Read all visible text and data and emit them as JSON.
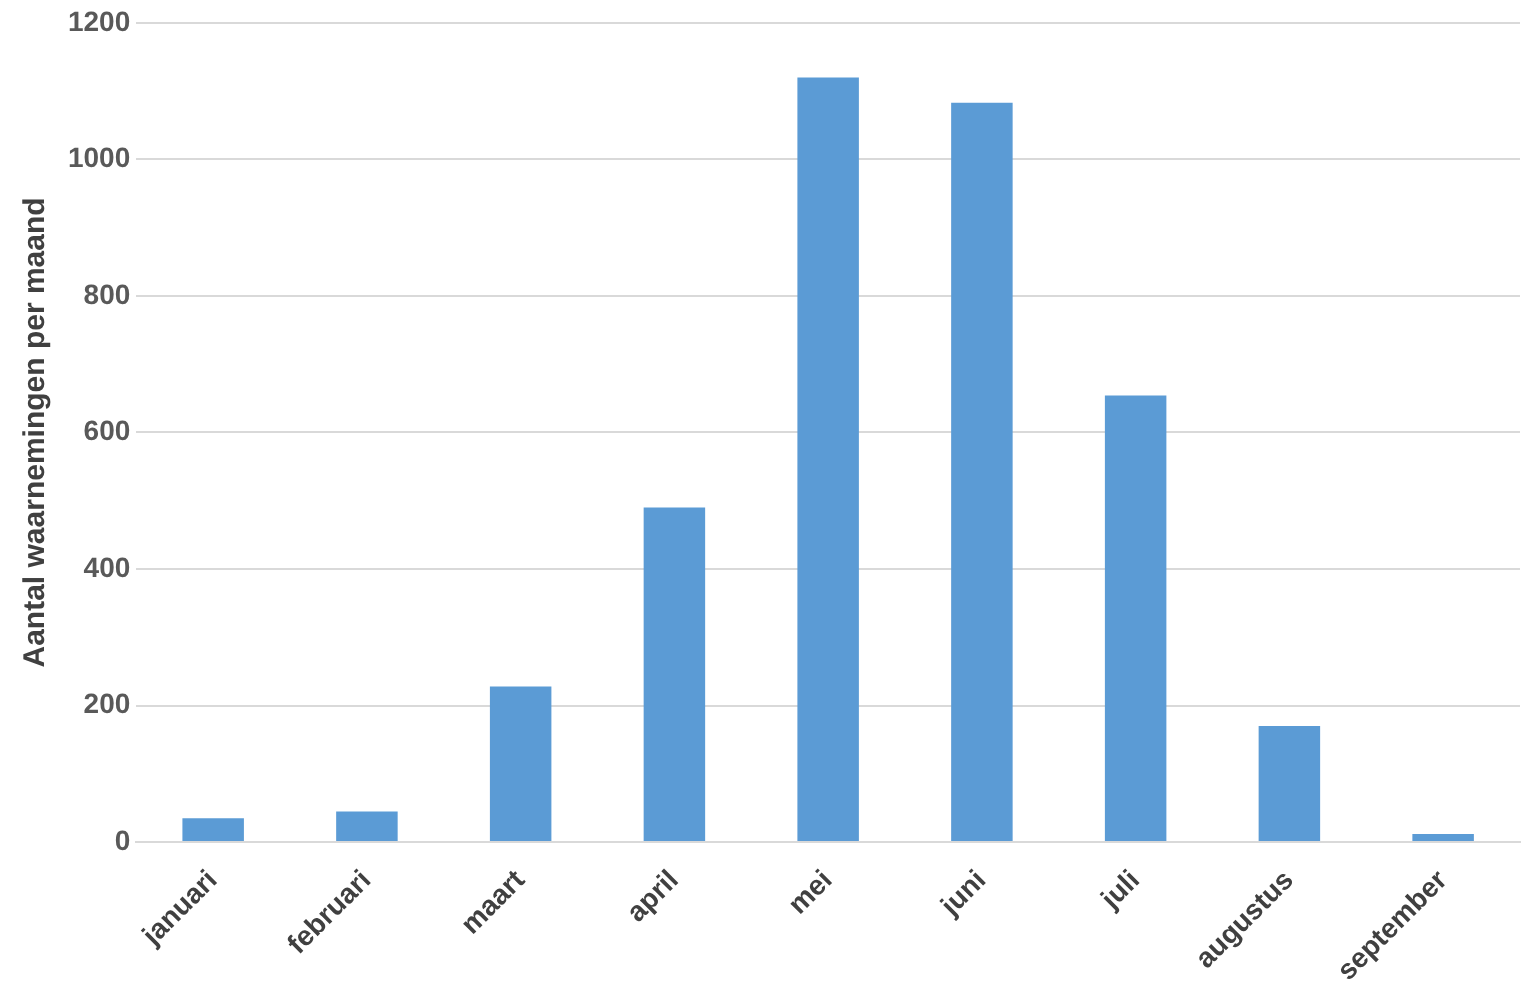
{
  "chart_data": {
    "type": "bar",
    "ylabel": "Aantal waarnemingen per maand",
    "categories": [
      "januari",
      "februari",
      "maart",
      "april",
      "mei",
      "juni",
      "juli",
      "augustus",
      "september"
    ],
    "values": [
      35,
      45,
      228,
      490,
      1120,
      1083,
      654,
      170,
      12
    ],
    "color": "#5b9bd5",
    "ylim": [
      0,
      1200
    ],
    "yticks": [
      0,
      200,
      400,
      600,
      800,
      1000,
      1200
    ],
    "grid": "y",
    "legend": false
  }
}
